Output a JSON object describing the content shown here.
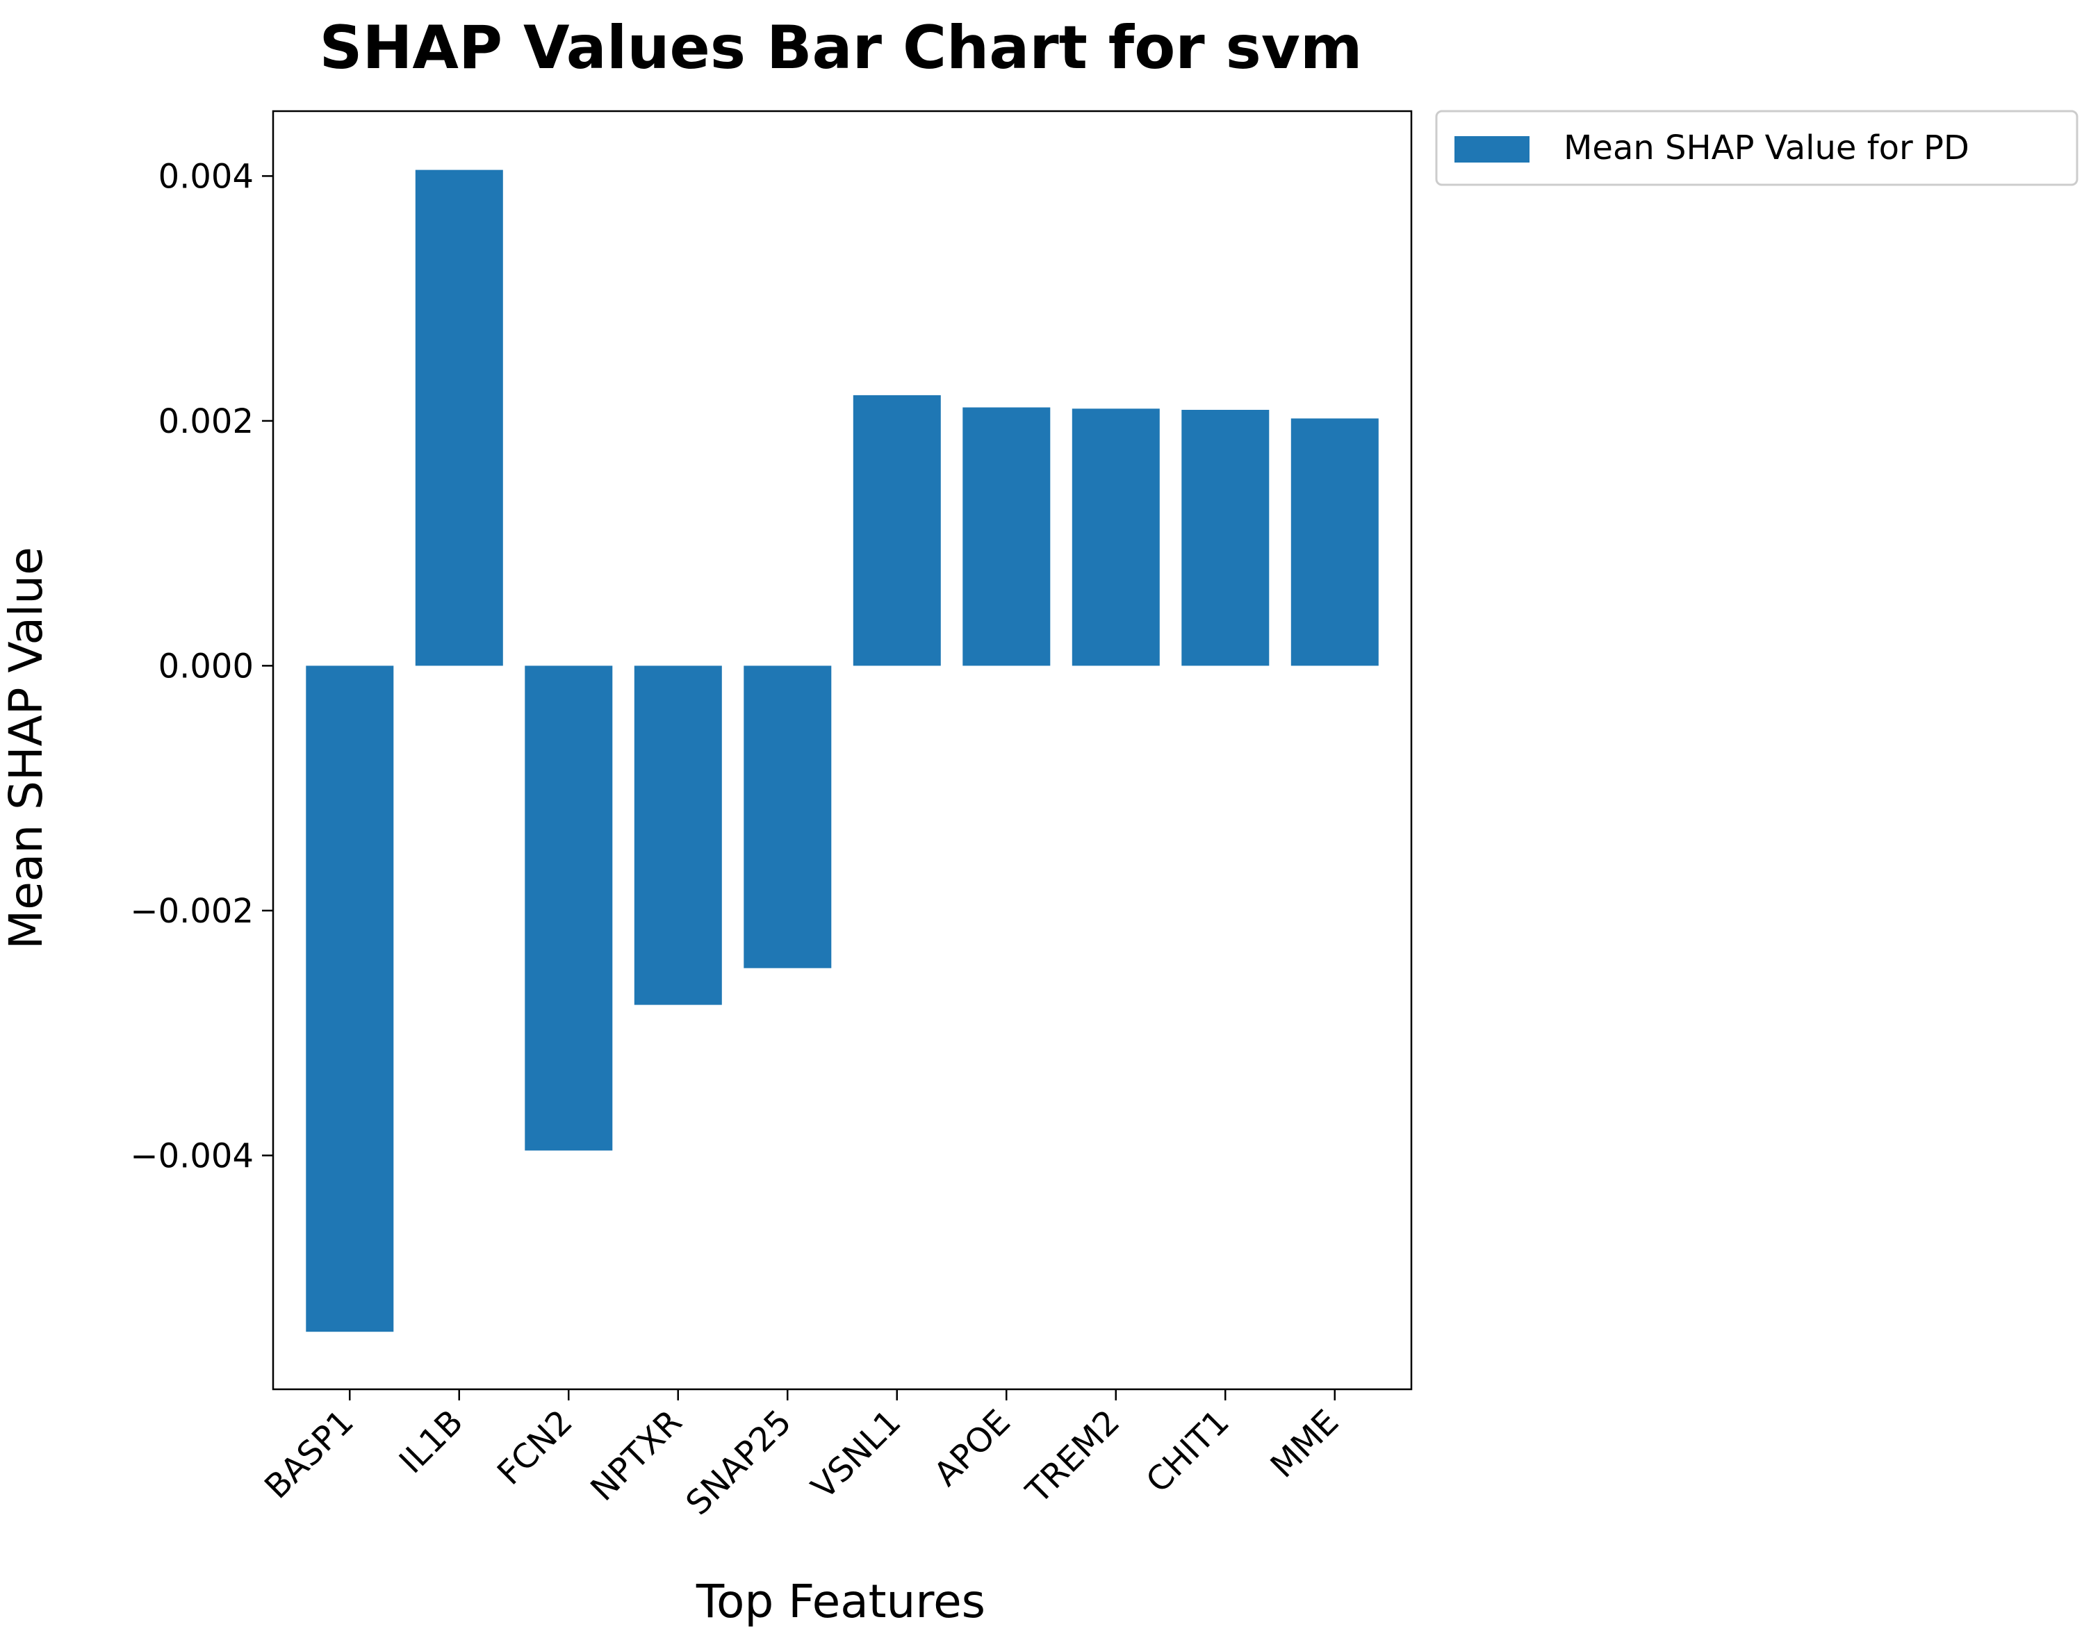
{
  "chart_data": {
    "type": "bar",
    "title": "SHAP Values Bar Chart for svm",
    "xlabel": "Top Features",
    "ylabel": "Mean SHAP Value",
    "categories": [
      "BASP1",
      "IL1B",
      "FCN2",
      "NPTXR",
      "SNAP25",
      "VSNL1",
      "APOE",
      "TREM2",
      "CHIT1",
      "MME"
    ],
    "series": [
      {
        "name": "Mean SHAP Value for PD",
        "color": "#1f77b4",
        "values": [
          -0.00544,
          0.00405,
          -0.00396,
          -0.00277,
          -0.00247,
          0.00221,
          0.00211,
          0.0021,
          0.00209,
          0.00202
        ]
      }
    ],
    "ylim": [
      -0.00591,
      0.00453
    ],
    "yticks": [
      -0.004,
      -0.002,
      0.0,
      0.002,
      0.004
    ],
    "ytick_labels": [
      "−0.004",
      "−0.002",
      "0.000",
      "0.002",
      "0.004"
    ],
    "grid": false,
    "legend_position": "outside-top-right"
  }
}
